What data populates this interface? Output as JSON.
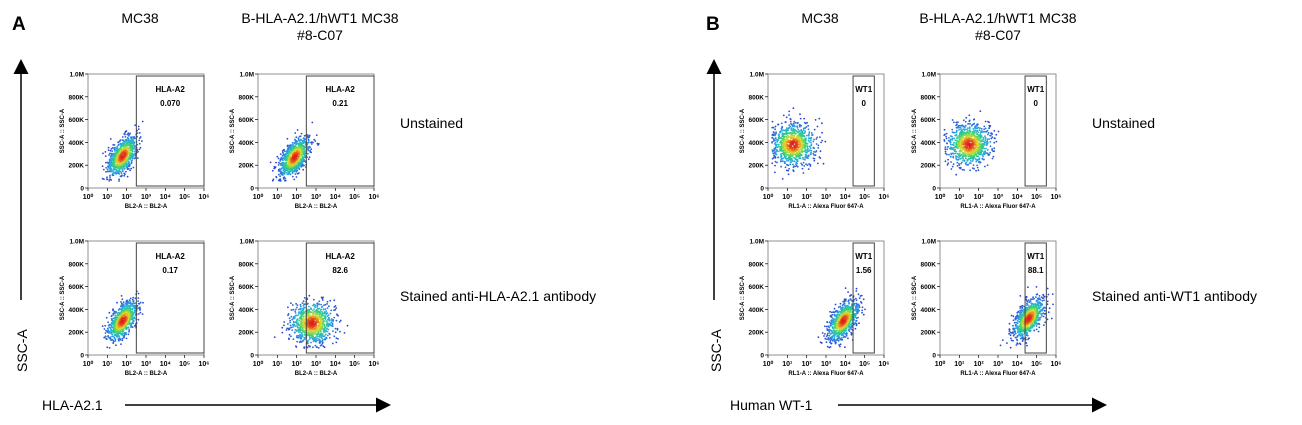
{
  "colors": {
    "axis": "#000000",
    "gate": "#444444",
    "dot_low": "#2b3fcf",
    "dot_mid": "#2fd0a0",
    "dot_high": "#e11b1b"
  },
  "figure": {
    "panels": [
      {
        "letter": "A",
        "col_titles": [
          {
            "line1": "MC38",
            "line2": ""
          },
          {
            "line1": "B-HLA-A2.1/hWT1 MC38",
            "line2": "#8-C07"
          }
        ],
        "row_labels": [
          "Unstained",
          "Stained anti-HLA-A2.1 antibody"
        ],
        "x_title": "HLA-A2.1",
        "y_title": "SSC-A",
        "plot_x_label": "BL2-A :: BL2-A",
        "plot_y_label": "SSC-A :: SSC-A"
      },
      {
        "letter": "B",
        "col_titles": [
          {
            "line1": "MC38",
            "line2": ""
          },
          {
            "line1": "B-HLA-A2.1/hWT1 MC38",
            "line2": "#8-C07"
          }
        ],
        "row_labels": [
          "Unstained",
          "Stained anti-WT1 antibody"
        ],
        "x_title": "Human WT-1",
        "y_title": "SSC-A",
        "plot_x_label": "RL1-A :: Alexa Fluor  647-A",
        "plot_y_label": "SSC-A :: SSC-A"
      }
    ]
  },
  "chart_data": [
    {
      "type": "scatter",
      "panel": "A",
      "column": "MC38",
      "row": "Unstained",
      "xlabel": "BL2-A :: BL2-A",
      "ylabel": "SSC-A :: SSC-A",
      "x_scale": "log",
      "xlim": [
        0,
        6
      ],
      "x_ticks": [
        "10⁰",
        "10¹",
        "10²",
        "10³",
        "10⁴",
        "10⁵",
        "10⁶"
      ],
      "ylim": [
        0,
        1000000
      ],
      "y_ticks": [
        "0",
        "200K",
        "400K",
        "600K",
        "800K",
        "1.0M"
      ],
      "gate": {
        "name": "HLA-A2",
        "value": "0.070",
        "x_range_log": [
          2.5,
          6
        ]
      },
      "population": {
        "center_log_x": 1.8,
        "center_y": 280000,
        "spread": "medium",
        "tilt": "up"
      }
    },
    {
      "type": "scatter",
      "panel": "A",
      "column": "B-HLA-A2.1/hWT1 MC38 #8-C07",
      "row": "Unstained",
      "xlabel": "BL2-A :: BL2-A",
      "ylabel": "SSC-A :: SSC-A",
      "x_scale": "log",
      "xlim": [
        0,
        6
      ],
      "x_ticks": [
        "10⁰",
        "10¹",
        "10²",
        "10³",
        "10⁴",
        "10⁵",
        "10⁶"
      ],
      "ylim": [
        0,
        1000000
      ],
      "y_ticks": [
        "0",
        "200K",
        "400K",
        "600K",
        "800K",
        "1.0M"
      ],
      "gate": {
        "name": "HLA-A2",
        "value": "0.21",
        "x_range_log": [
          2.5,
          6
        ]
      },
      "population": {
        "center_log_x": 1.9,
        "center_y": 270000,
        "spread": "medium",
        "tilt": "up"
      }
    },
    {
      "type": "scatter",
      "panel": "A",
      "column": "MC38",
      "row": "Stained anti-HLA-A2.1 antibody",
      "xlabel": "BL2-A :: BL2-A",
      "ylabel": "SSC-A :: SSC-A",
      "x_scale": "log",
      "xlim": [
        0,
        6
      ],
      "x_ticks": [
        "10⁰",
        "10¹",
        "10²",
        "10³",
        "10⁴",
        "10⁵",
        "10⁶"
      ],
      "ylim": [
        0,
        1000000
      ],
      "y_ticks": [
        "0",
        "200K",
        "400K",
        "600K",
        "800K",
        "1.0M"
      ],
      "gate": {
        "name": "HLA-A2",
        "value": "0.17",
        "x_range_log": [
          2.5,
          6
        ]
      },
      "population": {
        "center_log_x": 1.8,
        "center_y": 300000,
        "spread": "medium",
        "tilt": "up"
      }
    },
    {
      "type": "scatter",
      "panel": "A",
      "column": "B-HLA-A2.1/hWT1 MC38 #8-C07",
      "row": "Stained anti-HLA-A2.1 antibody",
      "xlabel": "BL2-A :: BL2-A",
      "ylabel": "SSC-A :: SSC-A",
      "x_scale": "log",
      "xlim": [
        0,
        6
      ],
      "x_ticks": [
        "10⁰",
        "10¹",
        "10²",
        "10³",
        "10⁴",
        "10⁵",
        "10⁶"
      ],
      "ylim": [
        0,
        1000000
      ],
      "y_ticks": [
        "0",
        "200K",
        "400K",
        "600K",
        "800K",
        "1.0M"
      ],
      "gate": {
        "name": "HLA-A2",
        "value": "82.6",
        "x_range_log": [
          2.5,
          6
        ]
      },
      "population": {
        "center_log_x": 2.8,
        "center_y": 280000,
        "spread": "wide",
        "tilt": "flat"
      }
    },
    {
      "type": "scatter",
      "panel": "B",
      "column": "MC38",
      "row": "Unstained",
      "xlabel": "RL1-A :: Alexa Fluor  647-A",
      "ylabel": "SSC-A :: SSC-A",
      "x_scale": "log",
      "xlim": [
        0,
        6
      ],
      "x_ticks": [
        "10⁰",
        "10¹",
        "10²",
        "10³",
        "10⁴",
        "10⁵",
        "10⁶"
      ],
      "ylim": [
        0,
        1000000
      ],
      "y_ticks": [
        "0",
        "200K",
        "400K",
        "600K",
        "800K",
        "1.0M"
      ],
      "gate": {
        "name": "WT1",
        "value": "0",
        "x_range_log": [
          4.4,
          5.5
        ]
      },
      "population": {
        "center_log_x": 1.3,
        "center_y": 380000,
        "spread": "wide",
        "tilt": "flat"
      }
    },
    {
      "type": "scatter",
      "panel": "B",
      "column": "B-HLA-A2.1/hWT1 MC38 #8-C07",
      "row": "Unstained",
      "xlabel": "RL1-A :: Alexa Fluor  647-A",
      "ylabel": "SSC-A :: SSC-A",
      "x_scale": "log",
      "xlim": [
        0,
        6
      ],
      "x_ticks": [
        "10⁰",
        "10¹",
        "10²",
        "10³",
        "10⁴",
        "10⁵",
        "10⁶"
      ],
      "ylim": [
        0,
        1000000
      ],
      "y_ticks": [
        "0",
        "200K",
        "400K",
        "600K",
        "800K",
        "1.0M"
      ],
      "gate": {
        "name": "WT1",
        "value": "0",
        "x_range_log": [
          4.4,
          5.5
        ]
      },
      "population": {
        "center_log_x": 1.5,
        "center_y": 380000,
        "spread": "wide",
        "tilt": "flat"
      }
    },
    {
      "type": "scatter",
      "panel": "B",
      "column": "MC38",
      "row": "Stained anti-WT1 antibody",
      "xlabel": "RL1-A :: Alexa Fluor  647-A",
      "ylabel": "SSC-A :: SSC-A",
      "x_scale": "log",
      "xlim": [
        0,
        6
      ],
      "x_ticks": [
        "10⁰",
        "10¹",
        "10²",
        "10³",
        "10⁴",
        "10⁵",
        "10⁶"
      ],
      "ylim": [
        0,
        1000000
      ],
      "y_ticks": [
        "0",
        "200K",
        "400K",
        "600K",
        "800K",
        "1.0M"
      ],
      "gate": {
        "name": "WT1",
        "value": "1.56",
        "x_range_log": [
          4.4,
          5.5
        ]
      },
      "population": {
        "center_log_x": 3.9,
        "center_y": 300000,
        "spread": "medium",
        "tilt": "up"
      }
    },
    {
      "type": "scatter",
      "panel": "B",
      "column": "B-HLA-A2.1/hWT1 MC38 #8-C07",
      "row": "Stained anti-WT1 antibody",
      "xlabel": "RL1-A :: Alexa Fluor  647-A",
      "ylabel": "SSC-A :: SSC-A",
      "x_scale": "log",
      "xlim": [
        0,
        6
      ],
      "x_ticks": [
        "10⁰",
        "10¹",
        "10²",
        "10³",
        "10⁴",
        "10⁵",
        "10⁶"
      ],
      "ylim": [
        0,
        1000000
      ],
      "y_ticks": [
        "0",
        "200K",
        "400K",
        "600K",
        "800K",
        "1.0M"
      ],
      "gate": {
        "name": "WT1",
        "value": "88.1",
        "x_range_log": [
          4.4,
          5.5
        ]
      },
      "population": {
        "center_log_x": 4.6,
        "center_y": 320000,
        "spread": "medium",
        "tilt": "up"
      }
    }
  ]
}
